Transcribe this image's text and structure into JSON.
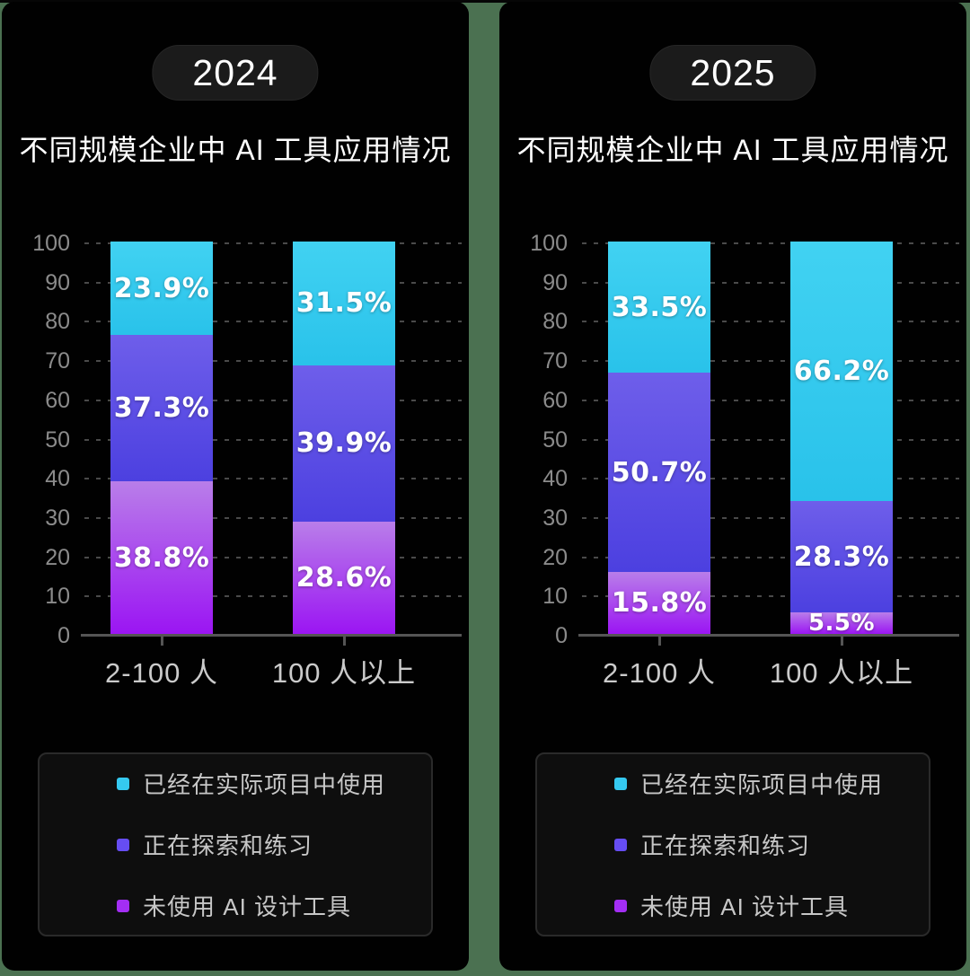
{
  "page": {
    "background_color": "#4b7151",
    "panel_background": "#010101",
    "top_edge_color": "#060606"
  },
  "theme": {
    "badge_bg": "#1b1b1b",
    "badge_text": "#ffffff",
    "title_text": "#ffffff",
    "grid_line": "#4a4a4a",
    "axis_line": "#555555",
    "y_tick_label": "#8b8b8b",
    "x_label": "#cbcbcb",
    "value_label": "#ffffff",
    "legend_bg": "#0e0e0e",
    "legend_border": "#2a2a2a",
    "legend_text": "#c7c7c7"
  },
  "panels": [
    {
      "year_badge": "2024",
      "title": "不同规模企业中 AI 工具应用情况",
      "chart_data": {
        "type": "bar",
        "subtype": "stacked-percentage-column",
        "categories": [
          "2-100 人",
          "100 人以上"
        ],
        "series": [
          {
            "key": "in-use",
            "name": "已经在实际项目中使用",
            "color": "#35c9f0",
            "gradient": [
              "#41d2f2",
              "#29c2ea"
            ],
            "values": [
              23.9,
              31.5
            ]
          },
          {
            "key": "exploring",
            "name": "正在探索和练习",
            "color": "#664df2",
            "gradient": [
              "#6e5eea",
              "#4c40e0"
            ],
            "values": [
              37.3,
              39.9
            ]
          },
          {
            "key": "not-using",
            "name": "未使用 AI 设计工具",
            "color": "#a32ef4",
            "gradient": [
              "#b97ee9",
              "#9b15f3"
            ],
            "values": [
              38.8,
              28.6
            ]
          }
        ],
        "stack_order": "series listed top-to-bottom as they appear in each bar",
        "ylim": [
          0,
          100
        ],
        "yticks": [
          0,
          10,
          20,
          30,
          40,
          50,
          60,
          70,
          80,
          90,
          100
        ],
        "value_suffix": "%",
        "grid": "dashed-horizontal",
        "legend_position": "bottom"
      }
    },
    {
      "year_badge": "2025",
      "title": "不同规模企业中 AI 工具应用情况",
      "chart_data": {
        "type": "bar",
        "subtype": "stacked-percentage-column",
        "categories": [
          "2-100 人",
          "100 人以上"
        ],
        "series": [
          {
            "key": "in-use",
            "name": "已经在实际项目中使用",
            "color": "#35c9f0",
            "gradient": [
              "#41d2f2",
              "#29c2ea"
            ],
            "values": [
              33.5,
              66.2
            ]
          },
          {
            "key": "exploring",
            "name": "正在探索和练习",
            "color": "#664df2",
            "gradient": [
              "#6e5eea",
              "#4c40e0"
            ],
            "values": [
              50.7,
              28.3
            ]
          },
          {
            "key": "not-using",
            "name": "未使用 AI 设计工具",
            "color": "#a32ef4",
            "gradient": [
              "#b97ee9",
              "#9b15f3"
            ],
            "values": [
              15.8,
              5.5
            ]
          }
        ],
        "stack_order": "series listed top-to-bottom as they appear in each bar",
        "ylim": [
          0,
          100
        ],
        "yticks": [
          0,
          10,
          20,
          30,
          40,
          50,
          60,
          70,
          80,
          90,
          100
        ],
        "value_suffix": "%",
        "grid": "dashed-horizontal",
        "legend_position": "bottom"
      }
    }
  ]
}
